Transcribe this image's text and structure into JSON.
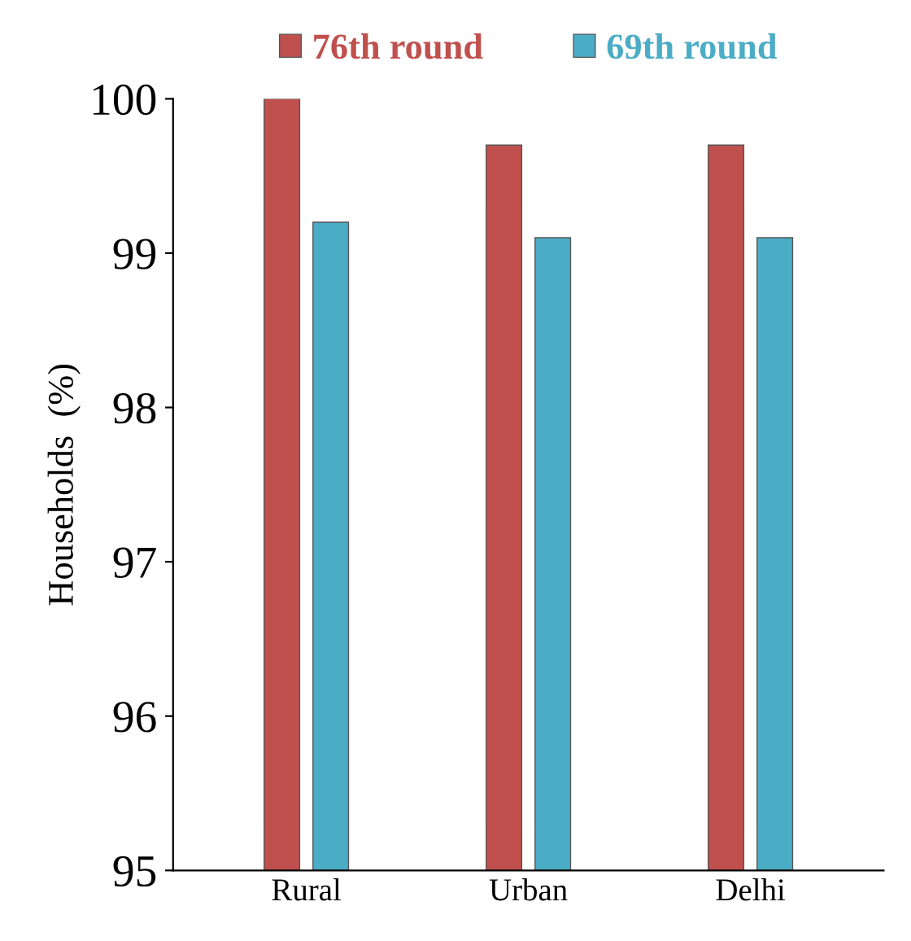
{
  "chart_data": {
    "type": "bar",
    "ylabel": "Households  (%)",
    "categories": [
      "Rural",
      "Urban",
      "Delhi"
    ],
    "series": [
      {
        "name": "76th round",
        "color": "#c0504d",
        "values": [
          100.0,
          99.7,
          99.7
        ]
      },
      {
        "name": "69th round",
        "color": "#4bacc6",
        "values": [
          99.2,
          99.1,
          99.1
        ]
      }
    ],
    "ylim": [
      95,
      100
    ],
    "yticks": [
      95,
      96,
      97,
      98,
      99,
      100
    ],
    "grid": false,
    "legend": "top"
  }
}
